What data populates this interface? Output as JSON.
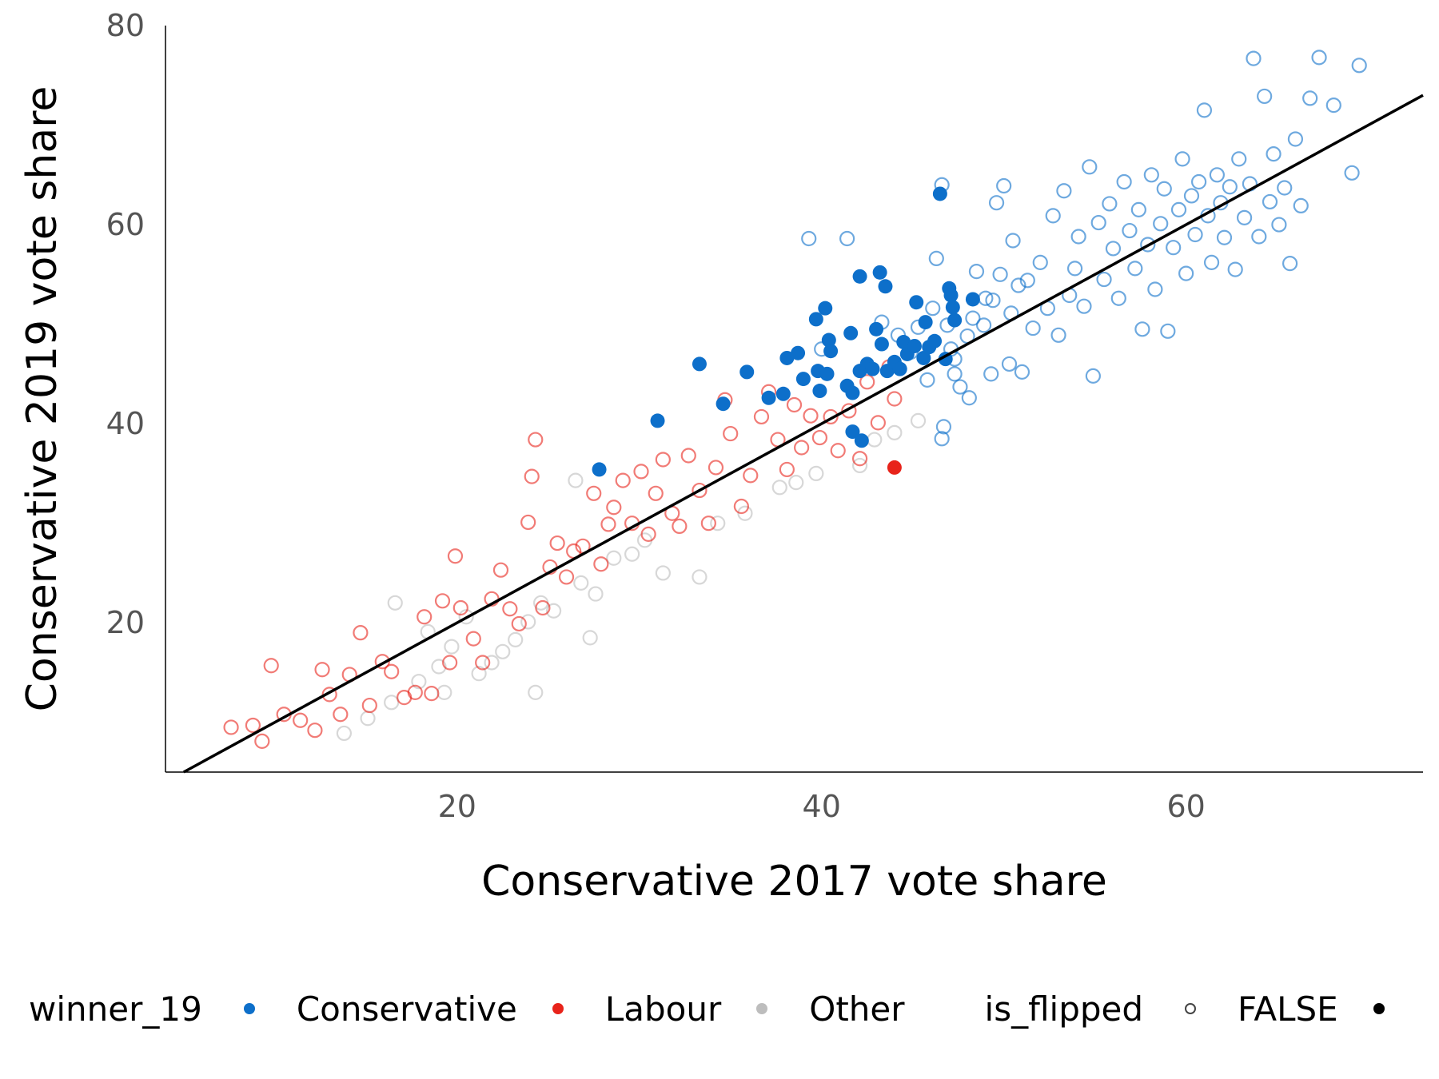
{
  "chart_data": {
    "type": "scatter",
    "xlabel": "Conservative 2017 vote share",
    "ylabel": "Conservative 2019 vote share",
    "xlim": [
      4,
      73
    ],
    "ylim": [
      5,
      80
    ],
    "xticks": [
      20,
      40,
      60
    ],
    "yticks": [
      20,
      40,
      60,
      80
    ],
    "grid": false,
    "reference_line": {
      "slope": 1.0,
      "intercept": 0
    },
    "legend": {
      "position": "bottom",
      "winner_title": "winner_19",
      "winner_entries": [
        {
          "label": "Conservative",
          "color": "#0d6fca"
        },
        {
          "label": "Labour",
          "color": "#e8231a"
        },
        {
          "label": "Other",
          "color": "#bdbdbd"
        }
      ],
      "flipped_title": "is_flipped",
      "flipped_entries": [
        {
          "label": "FALSE",
          "shape": "hollow-circle"
        },
        {
          "label": "",
          "shape": "filled-circle"
        }
      ]
    },
    "series": [
      {
        "name": "Conservative",
        "color": "#0d6fca",
        "flipped": [
          [
            27.8,
            35.4
          ],
          [
            31.0,
            40.3
          ],
          [
            33.3,
            46.0
          ],
          [
            34.6,
            42.0
          ],
          [
            35.9,
            45.2
          ],
          [
            37.1,
            42.6
          ],
          [
            37.9,
            43.0
          ],
          [
            38.1,
            46.6
          ],
          [
            38.7,
            47.1
          ],
          [
            39.0,
            44.5
          ],
          [
            39.7,
            50.5
          ],
          [
            39.8,
            45.3
          ],
          [
            39.9,
            43.3
          ],
          [
            40.2,
            51.6
          ],
          [
            40.3,
            45.0
          ],
          [
            40.4,
            48.4
          ],
          [
            40.5,
            47.3
          ],
          [
            41.4,
            43.8
          ],
          [
            41.6,
            49.1
          ],
          [
            41.7,
            43.1
          ],
          [
            41.7,
            39.2
          ],
          [
            42.1,
            54.8
          ],
          [
            42.1,
            45.3
          ],
          [
            42.2,
            38.3
          ],
          [
            42.5,
            46.0
          ],
          [
            42.8,
            45.5
          ],
          [
            43.0,
            49.5
          ],
          [
            43.2,
            55.2
          ],
          [
            43.3,
            48.0
          ],
          [
            43.5,
            53.8
          ],
          [
            43.6,
            45.3
          ],
          [
            44.0,
            46.2
          ],
          [
            44.3,
            45.5
          ],
          [
            44.5,
            48.2
          ],
          [
            44.7,
            47.0
          ],
          [
            45.1,
            47.8
          ],
          [
            45.2,
            52.2
          ],
          [
            45.6,
            46.6
          ],
          [
            45.7,
            50.2
          ],
          [
            45.9,
            47.7
          ],
          [
            46.2,
            48.3
          ],
          [
            46.5,
            63.1
          ],
          [
            46.8,
            46.5
          ],
          [
            47.0,
            53.6
          ],
          [
            47.1,
            52.9
          ],
          [
            47.2,
            51.7
          ],
          [
            47.3,
            50.4
          ],
          [
            48.3,
            52.5
          ]
        ],
        "not_flipped": [
          [
            39.3,
            58.6
          ],
          [
            40.0,
            47.5
          ],
          [
            41.4,
            58.6
          ],
          [
            43.3,
            50.2
          ],
          [
            44.2,
            48.9
          ],
          [
            44.9,
            47.2
          ],
          [
            45.3,
            49.7
          ],
          [
            45.8,
            44.4
          ],
          [
            46.1,
            51.6
          ],
          [
            46.3,
            56.6
          ],
          [
            46.6,
            64.0
          ],
          [
            46.6,
            38.5
          ],
          [
            46.7,
            39.7
          ],
          [
            46.9,
            49.9
          ],
          [
            47.1,
            47.5
          ],
          [
            47.3,
            45.0
          ],
          [
            47.3,
            46.5
          ],
          [
            47.6,
            43.7
          ],
          [
            48.0,
            48.8
          ],
          [
            48.1,
            42.6
          ],
          [
            48.3,
            50.6
          ],
          [
            48.5,
            55.3
          ],
          [
            48.9,
            49.9
          ],
          [
            49.0,
            52.6
          ],
          [
            49.3,
            45.0
          ],
          [
            49.4,
            52.4
          ],
          [
            49.6,
            62.2
          ],
          [
            49.8,
            55.0
          ],
          [
            50.0,
            63.9
          ],
          [
            50.3,
            46.0
          ],
          [
            50.4,
            51.1
          ],
          [
            50.5,
            58.4
          ],
          [
            50.8,
            53.9
          ],
          [
            51.0,
            45.2
          ],
          [
            51.3,
            54.4
          ],
          [
            51.6,
            49.6
          ],
          [
            52.0,
            56.2
          ],
          [
            52.4,
            51.6
          ],
          [
            52.7,
            60.9
          ],
          [
            53.0,
            48.9
          ],
          [
            53.3,
            63.4
          ],
          [
            53.6,
            52.9
          ],
          [
            53.9,
            55.6
          ],
          [
            54.1,
            58.8
          ],
          [
            54.4,
            51.8
          ],
          [
            54.7,
            65.8
          ],
          [
            54.9,
            44.8
          ],
          [
            55.2,
            60.2
          ],
          [
            55.5,
            54.5
          ],
          [
            55.8,
            62.1
          ],
          [
            56.0,
            57.6
          ],
          [
            56.3,
            52.6
          ],
          [
            56.6,
            64.3
          ],
          [
            56.9,
            59.4
          ],
          [
            57.2,
            55.6
          ],
          [
            57.4,
            61.5
          ],
          [
            57.6,
            49.5
          ],
          [
            57.9,
            58.0
          ],
          [
            58.1,
            65.0
          ],
          [
            58.3,
            53.5
          ],
          [
            58.6,
            60.1
          ],
          [
            58.8,
            63.6
          ],
          [
            59.0,
            49.3
          ],
          [
            59.3,
            57.7
          ],
          [
            59.6,
            61.5
          ],
          [
            59.8,
            66.6
          ],
          [
            60.0,
            55.1
          ],
          [
            60.3,
            62.9
          ],
          [
            60.5,
            59.0
          ],
          [
            60.7,
            64.3
          ],
          [
            61.0,
            71.5
          ],
          [
            61.2,
            60.9
          ],
          [
            61.4,
            56.2
          ],
          [
            61.7,
            65.0
          ],
          [
            61.9,
            62.2
          ],
          [
            62.1,
            58.7
          ],
          [
            62.4,
            63.8
          ],
          [
            62.7,
            55.5
          ],
          [
            62.9,
            66.6
          ],
          [
            63.2,
            60.7
          ],
          [
            63.5,
            64.1
          ],
          [
            63.7,
            76.7
          ],
          [
            64.0,
            58.8
          ],
          [
            64.3,
            72.9
          ],
          [
            64.6,
            62.3
          ],
          [
            64.8,
            67.1
          ],
          [
            65.1,
            60.0
          ],
          [
            65.4,
            63.7
          ],
          [
            65.7,
            56.1
          ],
          [
            66.0,
            68.6
          ],
          [
            66.3,
            61.9
          ],
          [
            66.8,
            72.7
          ],
          [
            67.3,
            76.8
          ],
          [
            68.1,
            72.0
          ],
          [
            69.1,
            65.2
          ],
          [
            69.5,
            76.0
          ]
        ]
      },
      {
        "name": "Labour",
        "color": "#e8231a",
        "flipped": [
          [
            44.0,
            35.6
          ]
        ],
        "not_flipped": [
          [
            7.6,
            9.5
          ],
          [
            8.8,
            9.7
          ],
          [
            9.3,
            8.1
          ],
          [
            9.8,
            15.7
          ],
          [
            10.5,
            10.8
          ],
          [
            11.4,
            10.2
          ],
          [
            12.2,
            9.2
          ],
          [
            12.6,
            15.3
          ],
          [
            13.0,
            12.8
          ],
          [
            13.6,
            10.8
          ],
          [
            14.1,
            14.8
          ],
          [
            14.7,
            19.0
          ],
          [
            15.2,
            11.7
          ],
          [
            15.9,
            16.1
          ],
          [
            16.4,
            15.1
          ],
          [
            17.1,
            12.5
          ],
          [
            17.7,
            13.0
          ],
          [
            18.2,
            20.6
          ],
          [
            18.6,
            12.9
          ],
          [
            19.2,
            22.2
          ],
          [
            19.6,
            16.0
          ],
          [
            19.9,
            26.7
          ],
          [
            20.2,
            21.5
          ],
          [
            20.9,
            18.4
          ],
          [
            21.4,
            16.0
          ],
          [
            21.9,
            22.4
          ],
          [
            22.4,
            25.3
          ],
          [
            22.9,
            21.4
          ],
          [
            23.4,
            19.9
          ],
          [
            23.9,
            30.1
          ],
          [
            24.1,
            34.7
          ],
          [
            24.3,
            38.4
          ],
          [
            24.7,
            21.5
          ],
          [
            25.1,
            25.6
          ],
          [
            25.5,
            28.0
          ],
          [
            26.0,
            24.6
          ],
          [
            26.4,
            27.2
          ],
          [
            26.9,
            27.7
          ],
          [
            27.5,
            33.0
          ],
          [
            27.9,
            25.9
          ],
          [
            28.3,
            29.9
          ],
          [
            28.6,
            31.6
          ],
          [
            29.1,
            34.3
          ],
          [
            29.6,
            30.0
          ],
          [
            30.1,
            35.2
          ],
          [
            30.5,
            28.9
          ],
          [
            30.9,
            33.0
          ],
          [
            31.3,
            36.4
          ],
          [
            31.8,
            31.0
          ],
          [
            32.2,
            29.7
          ],
          [
            32.7,
            36.8
          ],
          [
            33.3,
            33.3
          ],
          [
            33.8,
            30.0
          ],
          [
            34.2,
            35.6
          ],
          [
            34.7,
            42.4
          ],
          [
            35.0,
            39.0
          ],
          [
            35.6,
            31.7
          ],
          [
            36.1,
            34.8
          ],
          [
            36.7,
            40.7
          ],
          [
            37.1,
            43.2
          ],
          [
            37.6,
            38.4
          ],
          [
            38.1,
            35.4
          ],
          [
            38.5,
            41.9
          ],
          [
            38.9,
            37.6
          ],
          [
            39.4,
            40.8
          ],
          [
            39.9,
            38.6
          ],
          [
            40.5,
            40.7
          ],
          [
            40.9,
            37.3
          ],
          [
            41.5,
            41.3
          ],
          [
            42.1,
            36.5
          ],
          [
            42.5,
            44.2
          ],
          [
            43.1,
            40.1
          ],
          [
            43.7,
            45.7
          ],
          [
            44.0,
            42.5
          ]
        ]
      },
      {
        "name": "Other",
        "color": "#bdbdbd",
        "flipped": [],
        "not_flipped": [
          [
            13.8,
            8.9
          ],
          [
            15.1,
            10.4
          ],
          [
            16.4,
            12.0
          ],
          [
            16.6,
            22.0
          ],
          [
            17.9,
            14.1
          ],
          [
            18.4,
            19.1
          ],
          [
            19.0,
            15.6
          ],
          [
            19.3,
            13.0
          ],
          [
            19.7,
            17.6
          ],
          [
            20.5,
            20.6
          ],
          [
            21.2,
            14.9
          ],
          [
            21.9,
            16.0
          ],
          [
            22.5,
            17.1
          ],
          [
            23.2,
            18.3
          ],
          [
            23.9,
            20.1
          ],
          [
            24.3,
            13.0
          ],
          [
            24.6,
            22.0
          ],
          [
            25.3,
            21.2
          ],
          [
            26.5,
            34.3
          ],
          [
            26.8,
            24.0
          ],
          [
            27.3,
            18.5
          ],
          [
            27.6,
            22.9
          ],
          [
            28.6,
            26.5
          ],
          [
            29.6,
            26.9
          ],
          [
            30.3,
            28.3
          ],
          [
            31.3,
            25.0
          ],
          [
            33.3,
            24.6
          ],
          [
            34.3,
            30.0
          ],
          [
            35.8,
            31.0
          ],
          [
            37.7,
            33.6
          ],
          [
            38.6,
            34.1
          ],
          [
            39.7,
            35.0
          ],
          [
            42.1,
            35.8
          ],
          [
            42.9,
            38.4
          ],
          [
            44.0,
            39.1
          ],
          [
            45.3,
            40.3
          ]
        ]
      }
    ]
  }
}
